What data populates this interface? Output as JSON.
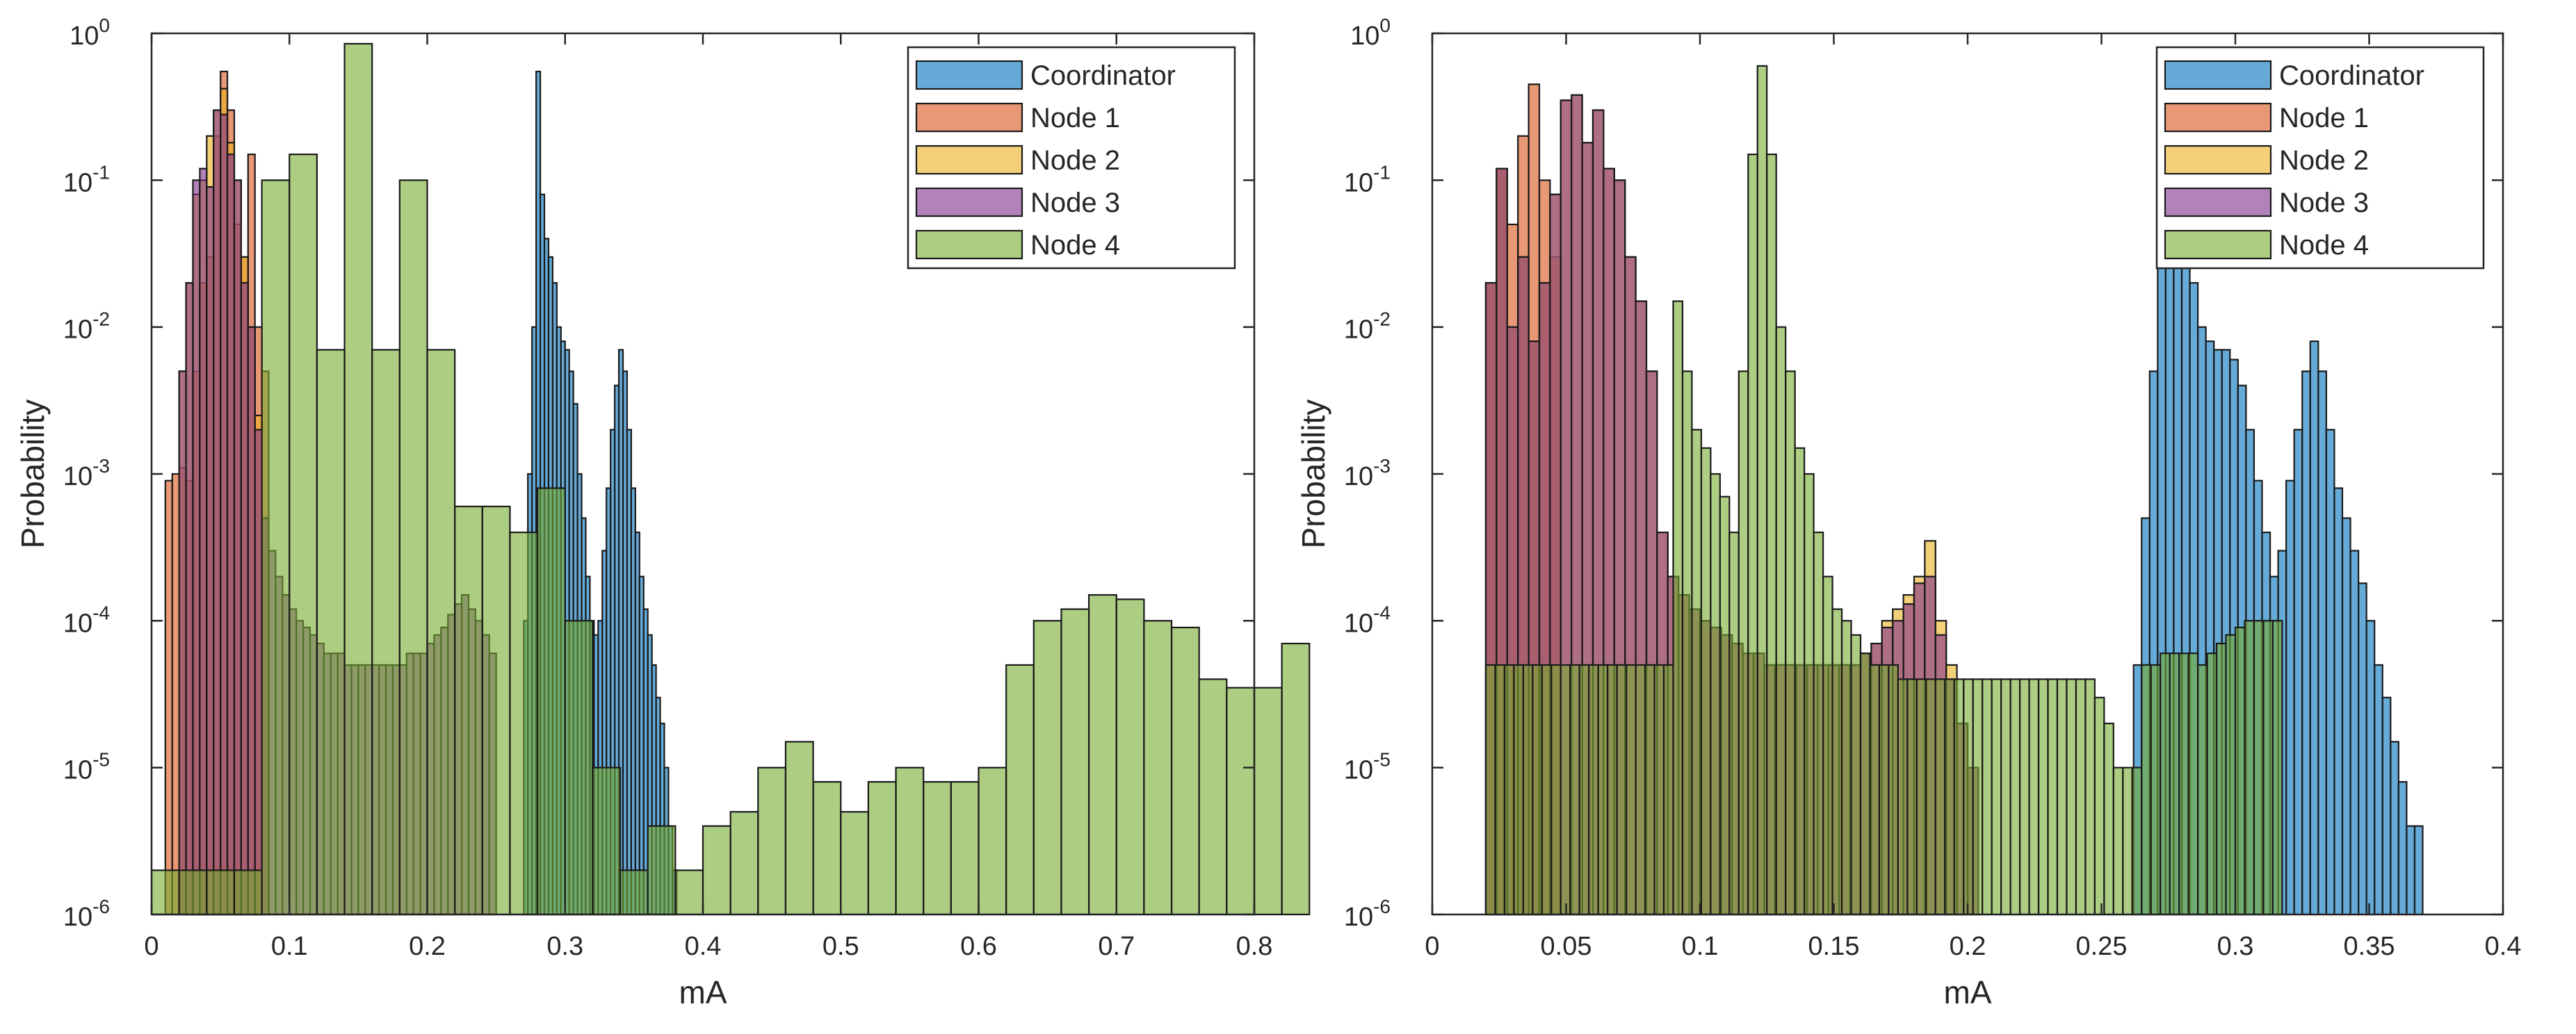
{
  "colors": {
    "Coordinator": "#0072BD",
    "Node 1": "#D95319",
    "Node 2": "#EDB120",
    "Node 3": "#7E2F8E",
    "Node 4": "#77AC30",
    "edge": "#1a1a1a",
    "axis": "#262626"
  },
  "chart_data": [
    {
      "type": "histogram",
      "title": "",
      "xlabel": "mA",
      "ylabel": "Probability",
      "yscale": "log",
      "xlim": [
        0,
        0.8
      ],
      "ylim": [
        1e-06,
        1
      ],
      "xticks": [
        "0",
        "0.1",
        "0.2",
        "0.3",
        "0.4",
        "0.5",
        "0.6",
        "0.7",
        "0.8"
      ],
      "yticks": [
        {
          "base": "10",
          "exp": "-6"
        },
        {
          "base": "10",
          "exp": "-5"
        },
        {
          "base": "10",
          "exp": "-4"
        },
        {
          "base": "10",
          "exp": "-3"
        },
        {
          "base": "10",
          "exp": "-2"
        },
        {
          "base": "10",
          "exp": "-1"
        },
        {
          "base": "10",
          "exp": "0"
        }
      ],
      "legend": {
        "location": "top-right",
        "entries": [
          "Coordinator",
          "Node 1",
          "Node 2",
          "Node 3",
          "Node 4"
        ]
      },
      "series": [
        {
          "name": "Node 1",
          "start": 0.01,
          "width": 0.005,
          "values": [
            0.0009,
            0.001,
            0.0011,
            0.0009,
            0.005,
            0.02,
            0.03,
            0.2,
            0.55,
            0.3,
            0.05,
            0.03,
            0.15,
            0.01,
            0.005
          ]
        },
        {
          "name": "Node 2",
          "start": 0.02,
          "width": 0.005,
          "values": [
            0.005,
            0.02,
            0.08,
            0.1,
            0.2,
            0.3,
            0.42,
            0.18,
            0.1,
            0.03,
            0.01,
            0.0025
          ]
        },
        {
          "name": "Node 3",
          "start": 0.02,
          "width": 0.005,
          "values": [
            0.005,
            0.02,
            0.1,
            0.12,
            0.09,
            0.3,
            0.28,
            0.15,
            0.1,
            0.02,
            0.01,
            0.002,
            0.0005,
            0.0003,
            0.0002,
            0.00015,
            0.00012,
            0.0001,
            9e-05,
            8e-05,
            7e-05,
            6e-05,
            6e-05,
            6e-05,
            5e-05,
            5e-05,
            5e-05,
            5e-05,
            5e-05,
            5e-05,
            5e-05,
            5e-05,
            5e-05,
            6e-05,
            6e-05,
            6e-05,
            7e-05,
            8e-05,
            9e-05,
            0.00011,
            0.00013,
            0.00015,
            0.00012,
            0.0001,
            8e-05,
            6e-05
          ]
        },
        {
          "name": "Coordinator",
          "start": 0.27,
          "width": 0.003,
          "values": [
            0.0001,
            0.001,
            0.01,
            0.55,
            0.08,
            0.04,
            0.03,
            0.02,
            0.01,
            0.008,
            0.007,
            0.005,
            0.003,
            0.001,
            0.0005,
            0.0002,
            0.0001,
            8e-05,
            0.0001,
            0.0003,
            0.0008,
            0.002,
            0.004,
            0.007,
            0.005,
            0.002,
            0.0008,
            0.0004,
            0.0002,
            0.00012,
            8e-05,
            5e-05,
            3e-05,
            2e-05,
            1e-05,
            4e-06,
            2e-06
          ]
        },
        {
          "name": "Node 4",
          "start": 0,
          "width": 0.02,
          "values": [
            2e-06,
            2e-06,
            2e-06,
            2e-06,
            0.1,
            0.15,
            0.007,
            0.85,
            0.007,
            0.1,
            0.007,
            0.0006,
            0.0006,
            0.0004,
            0.0008,
            0.0001,
            1e-05,
            2e-06,
            4e-06,
            2e-06,
            4e-06,
            5e-06,
            1e-05,
            1.5e-05,
            8e-06,
            5e-06,
            8e-06,
            1e-05,
            8e-06,
            8e-06,
            1e-05,
            5e-05,
            0.0001,
            0.00012,
            0.00015,
            0.00014,
            0.0001,
            9e-05,
            4e-05,
            3.5e-05,
            3.5e-05,
            7e-05
          ]
        }
      ]
    },
    {
      "type": "histogram",
      "title": "",
      "xlabel": "mA",
      "ylabel": "Probability",
      "yscale": "log",
      "xlim": [
        0,
        0.4
      ],
      "ylim": [
        1e-06,
        1
      ],
      "xticks": [
        "0",
        "0.05",
        "0.1",
        "0.15",
        "0.2",
        "0.25",
        "0.3",
        "0.35",
        "0.4"
      ],
      "yticks": [
        {
          "base": "10",
          "exp": "-6"
        },
        {
          "base": "10",
          "exp": "-5"
        },
        {
          "base": "10",
          "exp": "-4"
        },
        {
          "base": "10",
          "exp": "-3"
        },
        {
          "base": "10",
          "exp": "-2"
        },
        {
          "base": "10",
          "exp": "-1"
        },
        {
          "base": "10",
          "exp": "0"
        }
      ],
      "legend": {
        "location": "top-right",
        "entries": [
          "Coordinator",
          "Node 1",
          "Node 2",
          "Node 3",
          "Node 4"
        ]
      },
      "series": [
        {
          "name": "Coordinator",
          "start": 0.262,
          "width": 0.003,
          "values": [
            5e-05,
            0.0005,
            0.005,
            0.05,
            0.55,
            0.2,
            0.05,
            0.02,
            0.01,
            0.008,
            0.007,
            0.007,
            0.006,
            0.004,
            0.002,
            0.0009,
            0.0004,
            0.0002,
            0.0003,
            0.0009,
            0.002,
            0.005,
            0.008,
            0.005,
            0.002,
            0.0008,
            0.0005,
            0.0003,
            0.00018,
            0.0001,
            5e-05,
            3e-05,
            1.5e-05,
            8e-06,
            4e-06,
            4e-06
          ]
        },
        {
          "name": "Node 1",
          "start": 0.02,
          "width": 0.004,
          "values": [
            0.02,
            0.12,
            0.05,
            0.2,
            0.45,
            0.1,
            0.03
          ]
        },
        {
          "name": "Node 2",
          "start": 0.02,
          "width": 0.004,
          "values": [
            0.02,
            0.12,
            0.01,
            0.03,
            0.008,
            0.02,
            0.08,
            0.35,
            0.38,
            0.18,
            0.3,
            0.12,
            0.1,
            0.03,
            0.015,
            0.005,
            0.0004,
            0.0002,
            0.00015,
            0.00012,
            0.0001,
            9e-05,
            8e-05,
            7e-05,
            6e-05,
            6e-05,
            5e-05,
            5e-05,
            5e-05,
            5e-05,
            5e-05,
            5e-05,
            5e-05,
            5e-05,
            5e-05,
            6e-05,
            7e-05,
            0.0001,
            0.00012,
            0.00015,
            0.0002,
            0.00035,
            0.0001,
            5e-05,
            2e-05,
            1e-05
          ]
        },
        {
          "name": "Node 3",
          "start": 0.02,
          "width": 0.004,
          "values": [
            0.02,
            0.12,
            0.01,
            0.03,
            0.008,
            0.02,
            0.08,
            0.35,
            0.38,
            0.18,
            0.3,
            0.12,
            0.1,
            0.03,
            0.015,
            0.005,
            0.0004,
            0.0002,
            0.00015,
            0.00012,
            0.0001,
            9e-05,
            8e-05,
            7e-05,
            6e-05,
            6e-05,
            5e-05,
            5e-05,
            5e-05,
            5e-05,
            5e-05,
            5e-05,
            5e-05,
            5e-05,
            5e-05,
            6e-05,
            7e-05,
            9e-05,
            0.0001,
            0.00013,
            0.00018,
            0.0002,
            8e-05,
            4e-05,
            2e-05,
            1e-05
          ]
        },
        {
          "name": "Node 4",
          "start": 0.02,
          "width": 0.0035,
          "values": [
            5e-05,
            5e-05,
            5e-05,
            5e-05,
            5e-05,
            5e-05,
            5e-05,
            5e-05,
            5e-05,
            5e-05,
            5e-05,
            5e-05,
            5e-05,
            5e-05,
            5e-05,
            5e-05,
            5e-05,
            5e-05,
            5e-05,
            5e-05,
            0.015,
            0.005,
            0.002,
            0.0015,
            0.001,
            0.0007,
            0.0004,
            0.005,
            0.15,
            0.6,
            0.15,
            0.01,
            0.005,
            0.0015,
            0.001,
            0.0004,
            0.0002,
            0.00012,
            0.0001,
            8e-05,
            6e-05,
            5e-05,
            5e-05,
            5e-05,
            4e-05,
            4e-05,
            4e-05,
            4e-05,
            4e-05,
            4e-05,
            4e-05,
            4e-05,
            4e-05,
            4e-05,
            4e-05,
            4e-05,
            4e-05,
            4e-05,
            4e-05,
            4e-05,
            4e-05,
            4e-05,
            4e-05,
            4e-05,
            4e-05,
            3e-05,
            2e-05,
            1e-05,
            1e-05,
            1e-05,
            5e-05,
            5e-05,
            6e-05,
            6e-05,
            6e-05,
            6e-05,
            5e-05,
            6e-05,
            7e-05,
            8e-05,
            9e-05,
            0.0001,
            0.0001,
            0.0001,
            0.0001
          ]
        }
      ]
    }
  ]
}
